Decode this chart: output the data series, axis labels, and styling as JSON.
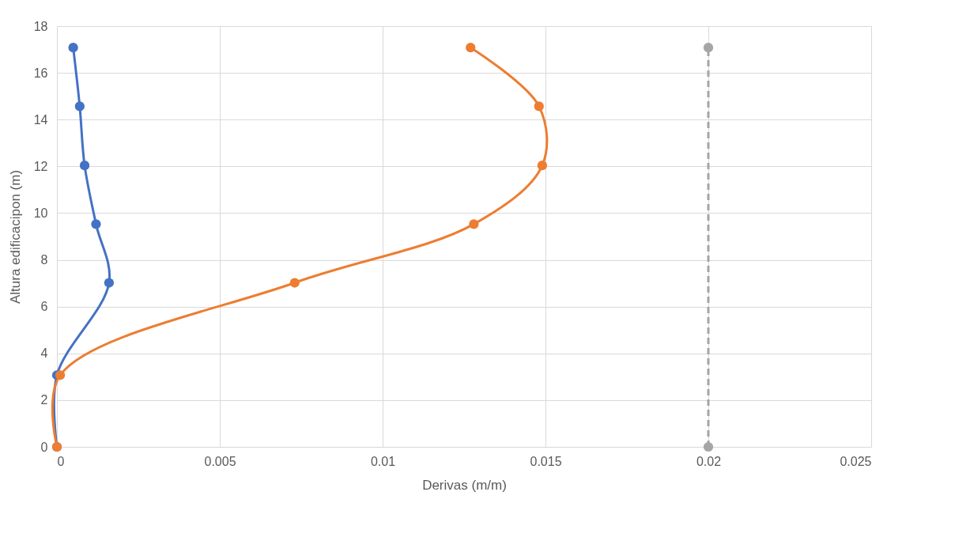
{
  "chart_data": {
    "type": "line",
    "xlabel": "Derivas (m/m)",
    "ylabel": "Altura edificacipon (m)",
    "xlim": [
      0,
      0.025
    ],
    "xticks": [
      0,
      0.005,
      0.01,
      0.015,
      0.02,
      0.025
    ],
    "ylim": [
      0,
      18
    ],
    "yticks": [
      0,
      2,
      4,
      6,
      8,
      10,
      12,
      14,
      16,
      18
    ],
    "grid": true,
    "marker": "circle",
    "series": [
      {
        "color": "#4472c4",
        "x": [
          0,
          0,
          0.0016,
          0.0012,
          0.00085,
          0.0007,
          0.0005
        ],
        "values": [
          0,
          3.07,
          7.02,
          9.53,
          12.04,
          14.57,
          17.08
        ]
      },
      {
        "color": "#ed7d31",
        "x": [
          0,
          0.0001,
          0.0073,
          0.0128,
          0.0149,
          0.0148,
          0.0127
        ],
        "values": [
          0,
          3.07,
          7.02,
          9.53,
          12.04,
          14.57,
          17.08
        ]
      },
      {
        "color": "#a5a5a5",
        "line_style": "dashed",
        "x": [
          0.02,
          0.02
        ],
        "values": [
          0,
          17.08
        ]
      }
    ]
  }
}
